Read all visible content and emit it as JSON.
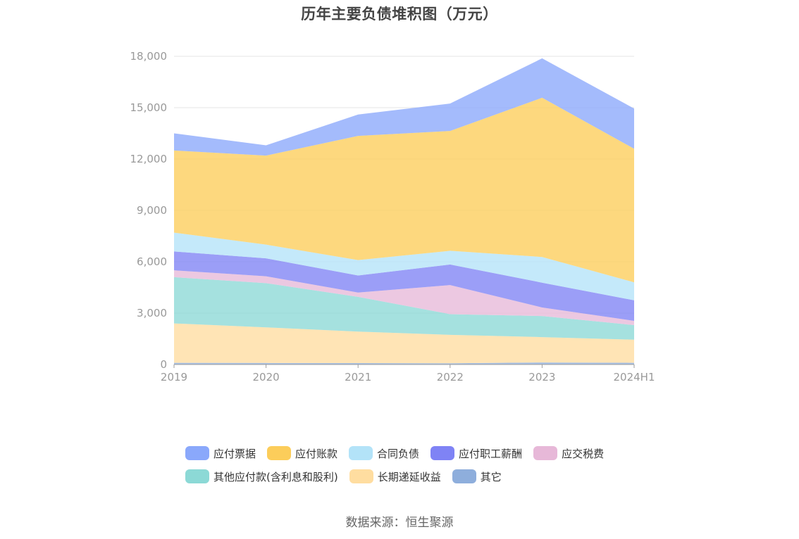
{
  "title": "历年主要负债堆积图（万元）",
  "source": "数据来源：恒生聚源",
  "chart_data": {
    "type": "area",
    "stacked": true,
    "title": "历年主要负债堆积图（万元）",
    "xlabel": "",
    "ylabel": "",
    "x": [
      "2019",
      "2020",
      "2021",
      "2022",
      "2023",
      "2024H1"
    ],
    "ylim": [
      0,
      18000
    ],
    "yticks": [
      0,
      3000,
      6000,
      9000,
      12000,
      15000,
      18000
    ],
    "ytick_labels": [
      "0",
      "3,000",
      "6,000",
      "9,000",
      "12,000",
      "15,000",
      "18,000"
    ],
    "grid": true,
    "legend_position": "bottom",
    "series": [
      {
        "name": "其它",
        "color": "#8eaedc",
        "values": [
          100,
          90,
          80,
          70,
          120,
          100
        ]
      },
      {
        "name": "长期递延收益",
        "color": "#ffdda0",
        "values": [
          2300,
          2080,
          1840,
          1660,
          1480,
          1350
        ]
      },
      {
        "name": "其他应付款(含利息和股利)",
        "color": "#8cd9d6",
        "values": [
          2700,
          2580,
          2030,
          1210,
          1230,
          850
        ]
      },
      {
        "name": "应交税费",
        "color": "#e7b8d8",
        "values": [
          400,
          400,
          250,
          1700,
          500,
          250
        ]
      },
      {
        "name": "应付职工薪酬",
        "color": "#7f83f5",
        "values": [
          1100,
          1050,
          1000,
          1200,
          1450,
          1200
        ]
      },
      {
        "name": "合同负债",
        "color": "#b3e3f8",
        "values": [
          1100,
          800,
          900,
          800,
          1500,
          1050
        ]
      },
      {
        "name": "应付账款",
        "color": "#fccd5a",
        "values": [
          4800,
          5200,
          7250,
          7000,
          9300,
          7800
        ]
      },
      {
        "name": "应付票据",
        "color": "#8aa8fb",
        "values": [
          1000,
          600,
          1250,
          1600,
          2300,
          2350
        ]
      }
    ],
    "legend_order": [
      "应付票据",
      "应付账款",
      "合同负债",
      "应付职工薪酬",
      "应交税费",
      "其他应付款(含利息和股利)",
      "长期递延收益",
      "其它"
    ],
    "legend_rows": [
      [
        "应付票据",
        "应付账款",
        "合同负债",
        "应付职工薪酬",
        "应交税费"
      ],
      [
        "其他应付款(含利息和股利)",
        "长期递延收益",
        "其它"
      ]
    ]
  }
}
